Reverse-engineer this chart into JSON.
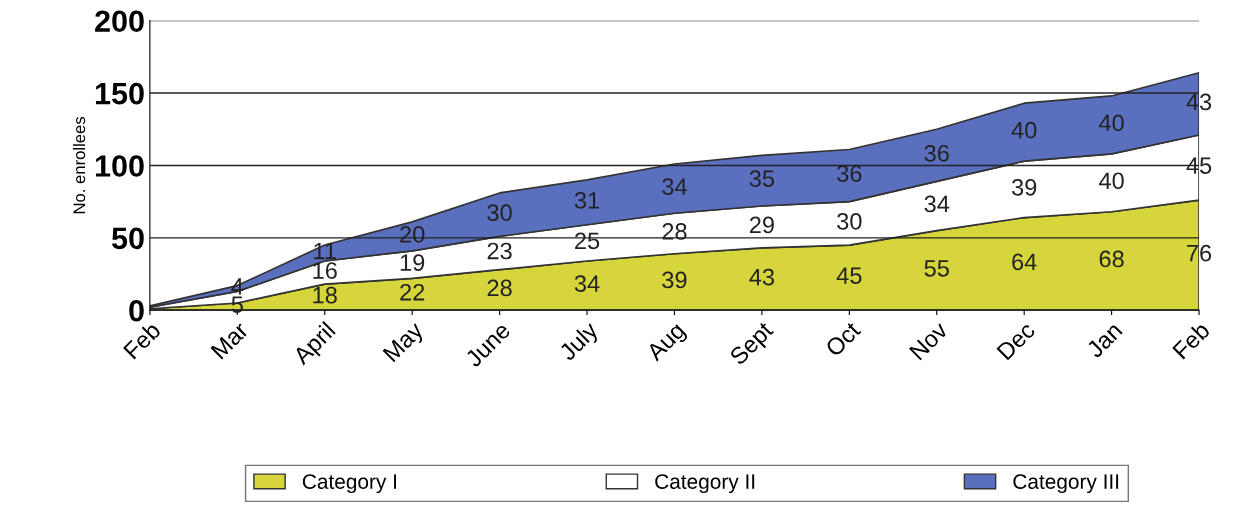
{
  "chart_data": {
    "type": "area",
    "stacked": true,
    "ylabel": "No. enrollees",
    "categories": [
      "Feb",
      "Mar",
      "April",
      "May",
      "June",
      "July",
      "Aug",
      "Sept",
      "Oct",
      "Nov",
      "Dec",
      "Jan",
      "Feb"
    ],
    "series": [
      {
        "name": "Category I",
        "color": "#d6d53c",
        "values": [
          1,
          5,
          18,
          22,
          28,
          34,
          39,
          43,
          45,
          55,
          64,
          68,
          76
        ],
        "value_labels": [
          null,
          "5",
          "18",
          "22",
          "28",
          "34",
          "39",
          "43",
          "45",
          "55",
          "64",
          "68",
          "76"
        ]
      },
      {
        "name": "Category II",
        "color": "#ffffff",
        "values": [
          1,
          8,
          16,
          19,
          23,
          25,
          28,
          29,
          30,
          34,
          39,
          40,
          45
        ],
        "value_labels": [
          null,
          null,
          "16",
          "19",
          "23",
          "25",
          "28",
          "29",
          "30",
          "34",
          "39",
          "40",
          "45"
        ]
      },
      {
        "name": "Category III",
        "color": "#5b6fbf",
        "values": [
          1,
          4,
          11,
          20,
          30,
          31,
          34,
          35,
          36,
          36,
          40,
          40,
          43
        ],
        "value_labels": [
          null,
          "4",
          "11",
          "20",
          "30",
          "31",
          "34",
          "35",
          "36",
          "36",
          "40",
          "40",
          "43"
        ]
      }
    ],
    "ylim": [
      0,
      200
    ],
    "yticks": [
      0,
      50,
      100,
      150,
      200
    ],
    "grid": "y",
    "legend": "bottom"
  }
}
